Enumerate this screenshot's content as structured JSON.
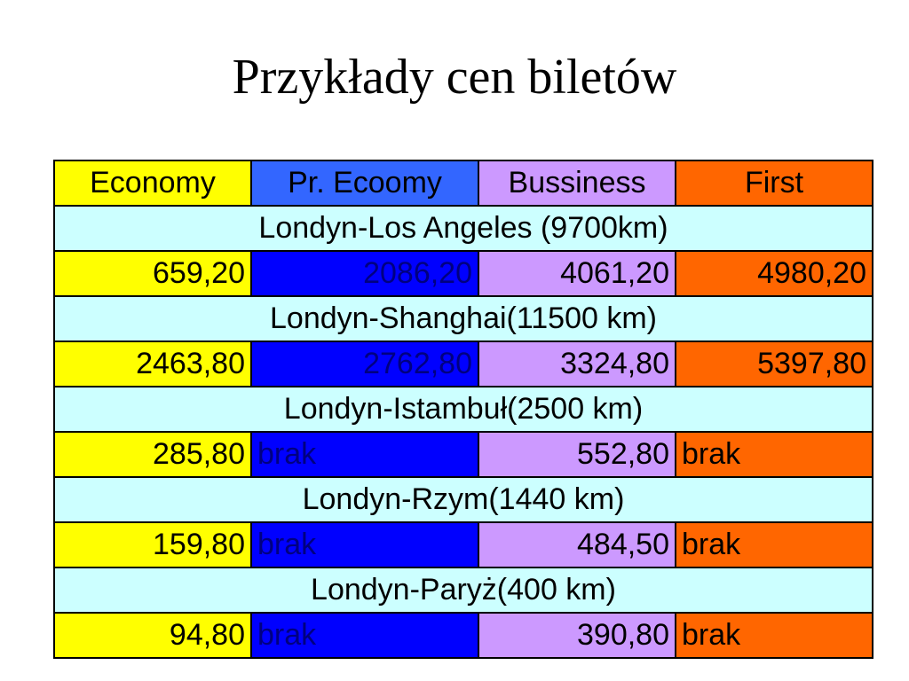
{
  "title": "Przykłady cen biletów",
  "colors": {
    "economy": "#ffff00",
    "premium_header": "#3366ff",
    "premium": "#0000ff",
    "business": "#cc99ff",
    "first": "#ff6600",
    "route": "#ccffff"
  },
  "table": {
    "headers": [
      "Economy",
      "Pr. Ecoomy",
      "Bussiness",
      "First"
    ],
    "routes": [
      {
        "name": "Londyn-Los Angeles (9700km)",
        "economy": "659,20",
        "premium": "2086,20",
        "business": "4061,20",
        "first": "4980,20"
      },
      {
        "name": "Londyn-Shanghai(11500 km)",
        "economy": "2463,80",
        "premium": "2762,80",
        "business": "3324,80",
        "first": "5397,80"
      },
      {
        "name": "Londyn-Istambuł(2500 km)",
        "economy": "285,80",
        "premium": "brak",
        "business": "552,80",
        "first": "brak"
      },
      {
        "name": "Londyn-Rzym(1440 km)",
        "economy": "159,80",
        "premium": "brak",
        "business": "484,50",
        "first": "brak"
      },
      {
        "name": "Londyn-Paryż(400 km)",
        "economy": "94,80",
        "premium": "brak",
        "business": "390,80",
        "first": "brak"
      }
    ]
  }
}
